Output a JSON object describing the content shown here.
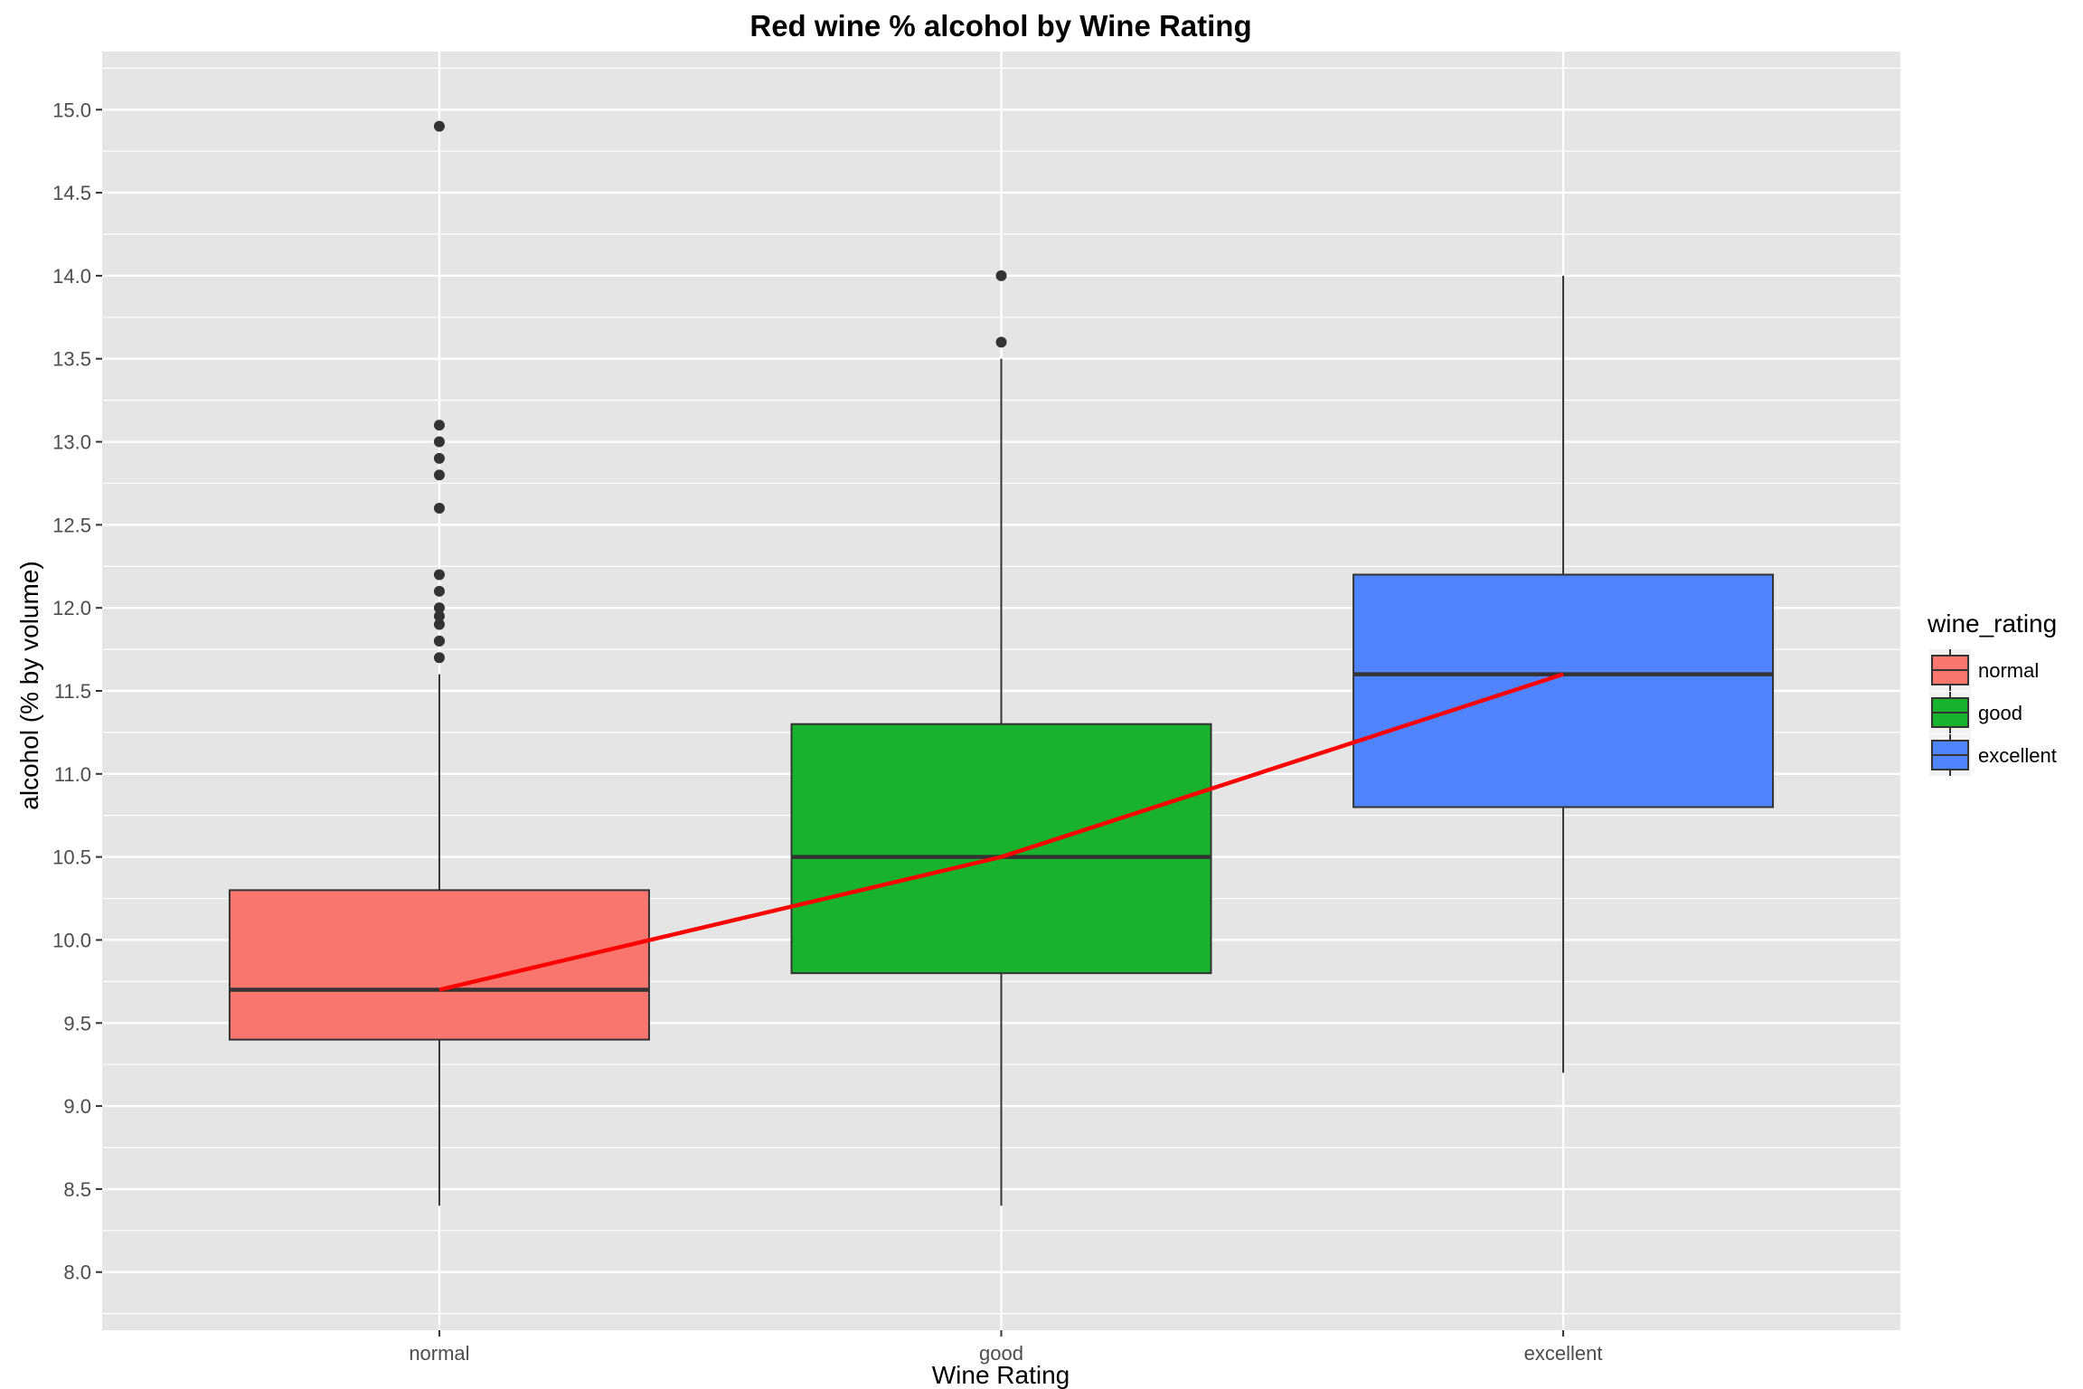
{
  "chart_data": {
    "type": "box",
    "title": "Red wine % alcohol by Wine Rating",
    "xlabel": "Wine Rating",
    "ylabel": "alcohol (% by volume)",
    "categories": [
      "normal",
      "good",
      "excellent"
    ],
    "ylim": [
      7.65,
      15.35
    ],
    "yticks": [
      8.0,
      8.5,
      9.0,
      9.5,
      10.0,
      10.5,
      11.0,
      11.5,
      12.0,
      12.5,
      13.0,
      13.5,
      14.0,
      14.5,
      15.0
    ],
    "ytick_labels": [
      "8.0",
      "8.5",
      "9.0",
      "9.5",
      "10.0",
      "10.5",
      "11.0",
      "11.5",
      "12.0",
      "12.5",
      "13.0",
      "13.5",
      "14.0",
      "14.5",
      "15.0"
    ],
    "boxes": [
      {
        "category": "normal",
        "whisker_low": 8.4,
        "q1": 9.4,
        "median": 9.7,
        "q3": 10.3,
        "whisker_high": 11.6,
        "outliers": [
          11.7,
          11.8,
          11.8,
          11.9,
          11.95,
          12.0,
          12.1,
          12.2,
          12.6,
          12.8,
          12.9,
          13.0,
          13.1,
          14.9
        ]
      },
      {
        "category": "good",
        "whisker_low": 8.4,
        "q1": 9.8,
        "median": 10.5,
        "q3": 11.3,
        "whisker_high": 13.5,
        "outliers": [
          13.6,
          14.0
        ]
      },
      {
        "category": "excellent",
        "whisker_low": 9.2,
        "q1": 10.8,
        "median": 11.6,
        "q3": 12.2,
        "whisker_high": 14.0,
        "outliers": []
      }
    ],
    "median_trend_line": {
      "color": "#ff0000",
      "values": [
        9.7,
        10.5,
        11.6
      ]
    },
    "grid": true,
    "legend": {
      "title": "wine_rating",
      "placement": "right",
      "entries": [
        {
          "label": "normal",
          "color": "#f8766d"
        },
        {
          "label": "good",
          "color": "#00ba38"
        },
        {
          "label": "excellent",
          "color": "#619cff"
        }
      ]
    },
    "colors": {
      "panel_background": "#e5e5e5",
      "grid_line": "#ffffff",
      "box_outline": "#333333",
      "normal": "#f8766d",
      "good": "#19b22e",
      "excellent": "#5084ff"
    }
  }
}
